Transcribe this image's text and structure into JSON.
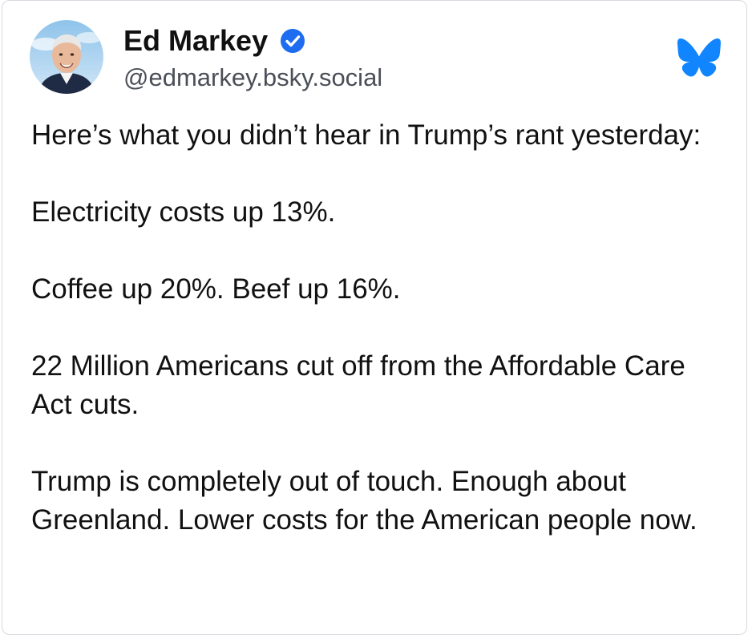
{
  "author": {
    "name": "Ed Markey",
    "handle": "@edmarkey.bsky.social",
    "verified": true,
    "verified_icon": "check-badge-icon",
    "avatar_icon": "profile-photo"
  },
  "brand": {
    "icon": "bluesky-butterfly-icon",
    "color": "#1185fe"
  },
  "post": {
    "paragraphs": [
      "Here’s what you didn’t hear in Trump’s rant yesterday:",
      "Electricity costs up 13%.",
      "Coffee up 20%. Beef up 16%.",
      "22 Million Americans cut off from the Affordable Care Act cuts.",
      "Trump is completely out of touch. Enough about Greenland. Lower costs for the American people now."
    ]
  },
  "colors": {
    "text": "#111111",
    "handle": "#4a4f57",
    "border": "#d6d9de",
    "verified": "#1e6cf0"
  }
}
